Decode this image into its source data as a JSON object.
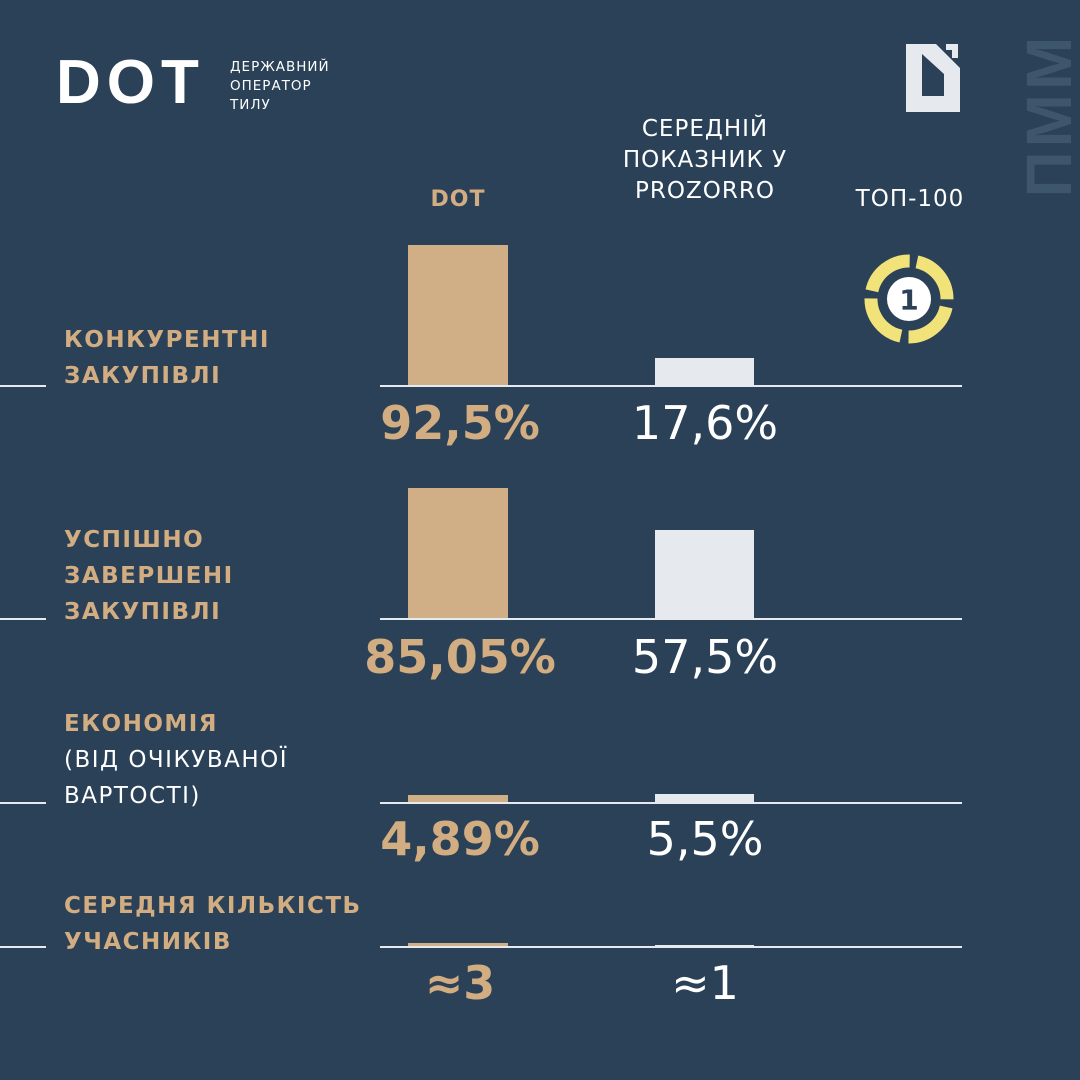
{
  "header": {
    "logo_text": "DOT",
    "logo_subtitle": [
      "ДЕРЖАВНИЙ",
      "ОПЕРАТОР",
      "ТИЛУ"
    ],
    "side_text": "ПММ"
  },
  "columns": {
    "dot": "DOT",
    "prozorro": [
      "СЕРЕДНІЙ",
      "ПОКАЗНИК У",
      "PROZORRO"
    ],
    "top": "ТОП-100",
    "top_badge": "1"
  },
  "colors": {
    "background": "#2a4157",
    "dot_bar": "#d0ae86",
    "avg_bar": "#e6e9ed",
    "accent_text": "#d3ad82",
    "badge": "#f2e27a"
  },
  "chart_data": {
    "type": "bar",
    "series": [
      {
        "name": "DOT",
        "values": [
          92.5,
          85.05,
          4.89,
          3
        ]
      },
      {
        "name": "СЕРЕДНІЙ ПОКАЗНИК У PROZORRO",
        "values": [
          17.6,
          57.5,
          5.5,
          1
        ]
      }
    ],
    "categories": [
      "КОНКУРЕНТНІ ЗАКУПІВЛІ",
      "УСПІШНО ЗАВЕРШЕНІ ЗАКУПІВЛІ",
      "ЕКОНОМІЯ (ВІД ОЧІКУВАНОЇ ВАРТОСТІ)",
      "СЕРЕДНЯ КІЛЬКІСТЬ УЧАСНИКІВ"
    ],
    "rows": [
      {
        "label": [
          "КОНКУРЕНТНІ",
          "ЗАКУПІВЛІ"
        ],
        "sub": [],
        "dot_value": 92.5,
        "avg_value": 17.6,
        "dot_label": "92,5%",
        "avg_label": "17,6%"
      },
      {
        "label": [
          "УСПІШНО",
          "ЗАВЕРШЕНІ",
          "ЗАКУПІВЛІ"
        ],
        "sub": [],
        "dot_value": 85.05,
        "avg_value": 57.5,
        "dot_label": "85,05%",
        "avg_label": "57,5%"
      },
      {
        "label": [
          "ЕКОНОМІЯ"
        ],
        "sub": [
          "(ВІД ОЧІКУВАНОЇ",
          "ВАРТОСТІ)"
        ],
        "dot_value": 4.89,
        "avg_value": 5.5,
        "dot_label": "4,89%",
        "avg_label": "5,5%"
      },
      {
        "label": [
          "СЕРЕДНЯ КІЛЬКІСТЬ",
          "УЧАСНИКІВ"
        ],
        "sub": [],
        "dot_value": 3,
        "avg_value": 1,
        "dot_label": "≈3",
        "avg_label": "≈1"
      }
    ]
  }
}
